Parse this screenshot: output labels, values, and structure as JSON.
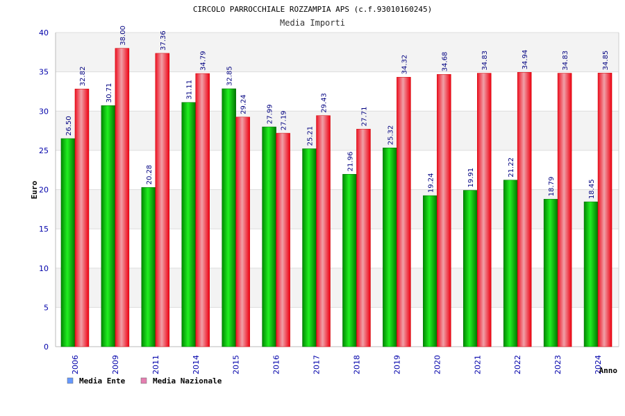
{
  "chart_data": {
    "type": "bar",
    "title": "CIRCOLO PARROCCHIALE ROZZAMPIA APS (c.f.93010160245)",
    "subtitle": "Media Importi",
    "xlabel": "Anno",
    "ylabel": "Euro",
    "ylim": [
      0,
      40
    ],
    "yticks": [
      0,
      5,
      10,
      15,
      20,
      25,
      30,
      35,
      40
    ],
    "grid": true,
    "legend_position": "bottom-left",
    "categories": [
      "2006",
      "2009",
      "2011",
      "2014",
      "2015",
      "2016",
      "2017",
      "2018",
      "2019",
      "2020",
      "2021",
      "2022",
      "2023",
      "2024"
    ],
    "series": [
      {
        "name": "Media Ente",
        "color": "#00bb00",
        "legend_color": "#6699ff",
        "values": [
          26.5,
          30.71,
          20.28,
          31.11,
          32.85,
          27.99,
          25.21,
          21.96,
          25.32,
          19.24,
          19.91,
          21.22,
          18.79,
          18.45
        ],
        "labels": [
          "26.50",
          "30.71",
          "20.28",
          "31.11",
          "32.85",
          "27.99",
          "25.21",
          "21.96",
          "25.32",
          "19.24",
          "19.91",
          "21.22",
          "18.79",
          "18.45"
        ]
      },
      {
        "name": "Media Nazionale",
        "color": "#ee1122",
        "legend_color": "#e47fb0",
        "values": [
          32.82,
          38.0,
          37.36,
          34.79,
          29.24,
          27.19,
          29.43,
          27.71,
          34.32,
          34.68,
          34.83,
          34.94,
          34.83,
          34.85
        ],
        "labels": [
          "32.82",
          "38.00",
          "37.36",
          "34.79",
          "29.24",
          "27.19",
          "29.43",
          "27.71",
          "34.32",
          "34.68",
          "34.83",
          "34.94",
          "34.83",
          "34.85"
        ]
      }
    ]
  }
}
